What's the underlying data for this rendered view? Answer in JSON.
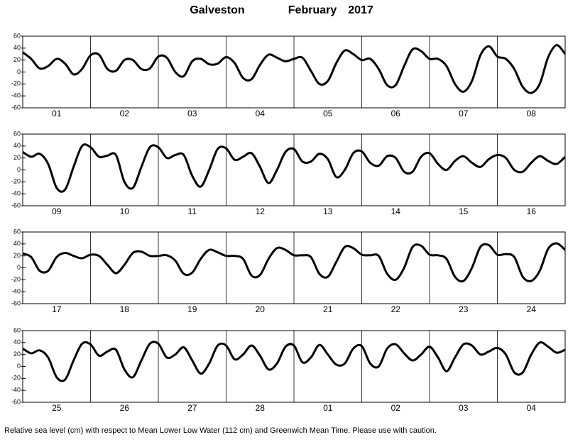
{
  "title": "Galveston",
  "month": "February",
  "year": "2017",
  "note": "Relative sea level (cm) with respect to Mean Lower Low Water (112 cm) and Greenwich Mean Time. Please use with caution.",
  "chart_data": [
    {
      "type": "line",
      "color": "#000000",
      "grid": true,
      "categories": [
        "01",
        "02",
        "03",
        "04",
        "05",
        "06",
        "07",
        "08"
      ],
      "x": [
        0,
        3,
        6,
        9,
        12,
        15,
        18,
        21,
        24,
        27,
        30,
        33,
        36,
        39,
        42,
        45,
        48,
        51,
        54,
        57,
        60,
        63,
        66,
        69,
        72,
        75,
        78,
        81,
        84,
        87,
        90,
        93,
        96,
        99,
        102,
        105,
        108,
        111,
        114,
        117,
        120,
        123,
        126,
        129,
        132,
        135,
        138,
        141,
        144,
        147,
        150,
        153,
        156,
        159,
        162,
        165,
        168,
        171,
        174,
        177,
        180,
        183,
        186,
        189,
        192
      ],
      "values": [
        33,
        22,
        6,
        10,
        22,
        14,
        -4,
        5,
        28,
        29,
        5,
        2,
        20,
        20,
        5,
        6,
        26,
        24,
        0,
        -7,
        18,
        22,
        13,
        14,
        25,
        15,
        -10,
        -12,
        12,
        29,
        24,
        18,
        22,
        24,
        2,
        -20,
        -15,
        15,
        36,
        30,
        20,
        22,
        5,
        -22,
        -22,
        10,
        38,
        35,
        22,
        22,
        10,
        -20,
        -33,
        -15,
        28,
        43,
        26,
        22,
        5,
        -25,
        -35,
        -20,
        25,
        45,
        30
      ],
      "xlim": [
        0,
        192
      ],
      "xticks": [
        0,
        24,
        48,
        72,
        96,
        120,
        144,
        168,
        192
      ],
      "ylim": [
        -60,
        60
      ],
      "yticks": [
        -60,
        -40,
        -20,
        0,
        20,
        40,
        60
      ]
    },
    {
      "type": "line",
      "color": "#000000",
      "grid": true,
      "categories": [
        "09",
        "10",
        "11",
        "12",
        "13",
        "14",
        "15",
        "16"
      ],
      "x": [
        0,
        3,
        6,
        9,
        12,
        15,
        18,
        21,
        24,
        27,
        30,
        33,
        36,
        39,
        42,
        45,
        48,
        51,
        54,
        57,
        60,
        63,
        66,
        69,
        72,
        75,
        78,
        81,
        84,
        87,
        90,
        93,
        96,
        99,
        102,
        105,
        108,
        111,
        114,
        117,
        120,
        123,
        126,
        129,
        132,
        135,
        138,
        141,
        144,
        147,
        150,
        153,
        156,
        159,
        162,
        165,
        168,
        171,
        174,
        177,
        180,
        183,
        186,
        189,
        192
      ],
      "values": [
        30,
        22,
        27,
        10,
        -30,
        -33,
        5,
        40,
        38,
        22,
        24,
        25,
        -20,
        -30,
        5,
        38,
        38,
        20,
        25,
        25,
        -10,
        -28,
        0,
        35,
        36,
        17,
        22,
        28,
        5,
        -22,
        0,
        30,
        35,
        14,
        14,
        27,
        18,
        -12,
        0,
        28,
        31,
        12,
        7,
        23,
        20,
        -3,
        -3,
        22,
        28,
        10,
        0,
        15,
        23,
        12,
        5,
        18,
        25,
        20,
        0,
        -3,
        12,
        23,
        15,
        10,
        22
      ],
      "xlim": [
        0,
        192
      ],
      "xticks": [
        0,
        24,
        48,
        72,
        96,
        120,
        144,
        168,
        192
      ],
      "ylim": [
        -60,
        60
      ],
      "yticks": [
        -60,
        -40,
        -20,
        0,
        20,
        40,
        60
      ]
    },
    {
      "type": "line",
      "color": "#000000",
      "grid": true,
      "categories": [
        "17",
        "18",
        "19",
        "20",
        "21",
        "22",
        "23",
        "24"
      ],
      "x": [
        0,
        3,
        6,
        9,
        12,
        15,
        18,
        21,
        24,
        27,
        30,
        33,
        36,
        39,
        42,
        45,
        48,
        51,
        54,
        57,
        60,
        63,
        66,
        69,
        72,
        75,
        78,
        81,
        84,
        87,
        90,
        93,
        96,
        99,
        102,
        105,
        108,
        111,
        114,
        117,
        120,
        123,
        126,
        129,
        132,
        135,
        138,
        141,
        144,
        147,
        150,
        153,
        156,
        159,
        162,
        165,
        168,
        171,
        174,
        177,
        180,
        183,
        186,
        189,
        192
      ],
      "values": [
        24,
        18,
        -5,
        -5,
        18,
        25,
        20,
        16,
        22,
        20,
        5,
        -9,
        5,
        25,
        27,
        20,
        20,
        21,
        12,
        -10,
        -8,
        15,
        30,
        26,
        20,
        20,
        15,
        -13,
        -12,
        15,
        33,
        30,
        21,
        21,
        18,
        -10,
        -15,
        10,
        35,
        33,
        22,
        21,
        20,
        -10,
        -20,
        0,
        35,
        37,
        22,
        21,
        15,
        -15,
        -22,
        0,
        35,
        38,
        22,
        23,
        18,
        -15,
        -22,
        -5,
        32,
        41,
        30
      ],
      "xlim": [
        0,
        192
      ],
      "xticks": [
        0,
        24,
        48,
        72,
        96,
        120,
        144,
        168,
        192
      ],
      "ylim": [
        -60,
        60
      ],
      "yticks": [
        -60,
        -40,
        -20,
        0,
        20,
        40,
        60
      ]
    },
    {
      "type": "line",
      "color": "#000000",
      "grid": true,
      "categories": [
        "25",
        "26",
        "27",
        "28",
        "01",
        "02",
        "03",
        "04"
      ],
      "x": [
        0,
        3,
        6,
        9,
        12,
        15,
        18,
        21,
        24,
        27,
        30,
        33,
        36,
        39,
        42,
        45,
        48,
        51,
        54,
        57,
        60,
        63,
        66,
        69,
        72,
        75,
        78,
        81,
        84,
        87,
        90,
        93,
        96,
        99,
        102,
        105,
        108,
        111,
        114,
        117,
        120,
        123,
        126,
        129,
        132,
        135,
        138,
        141,
        144,
        147,
        150,
        153,
        156,
        159,
        162,
        165,
        168,
        171,
        174,
        177,
        180,
        183,
        186,
        189,
        192
      ],
      "values": [
        30,
        22,
        27,
        15,
        -18,
        -22,
        10,
        38,
        37,
        18,
        25,
        28,
        -5,
        -18,
        10,
        38,
        38,
        15,
        20,
        32,
        10,
        -12,
        5,
        35,
        35,
        12,
        20,
        35,
        18,
        -5,
        5,
        33,
        35,
        7,
        15,
        36,
        20,
        3,
        5,
        30,
        34,
        5,
        0,
        30,
        37,
        22,
        10,
        20,
        33,
        15,
        -8,
        15,
        37,
        35,
        20,
        25,
        31,
        20,
        -10,
        -10,
        20,
        40,
        33,
        23,
        28
      ],
      "xlim": [
        0,
        192
      ],
      "xticks": [
        0,
        24,
        48,
        72,
        96,
        120,
        144,
        168,
        192
      ],
      "ylim": [
        -60,
        60
      ],
      "yticks": [
        -60,
        -40,
        -20,
        0,
        20,
        40,
        60
      ]
    }
  ]
}
